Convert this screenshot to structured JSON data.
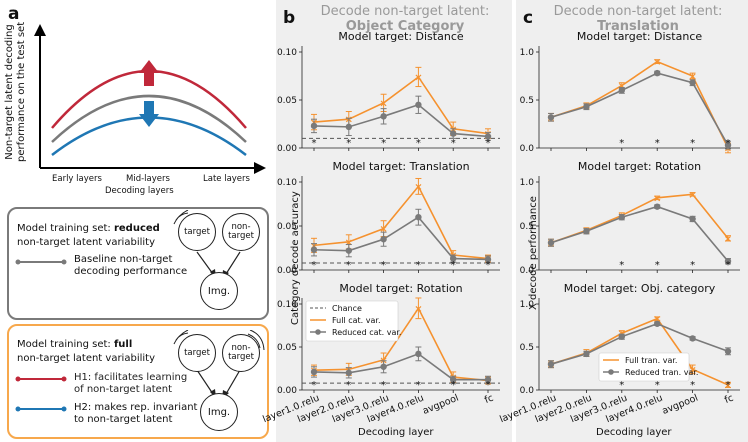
{
  "panel_a": {
    "label": "a",
    "ylabel_line1": "Non-target latent decoding",
    "ylabel_line2": "performance on the test set",
    "xticks": [
      "Early layers",
      "Mid-layers",
      "Late layers"
    ],
    "xlabel": "Decoding layers",
    "box1": {
      "line1_pre": "Model training set: ",
      "line1_bold": "reduced",
      "line2": "non-target latent variability",
      "legend_line1": "Baseline non-target",
      "legend_line2": "decoding performance",
      "node_target": "target",
      "node_nontarget_1": "non-",
      "node_nontarget_2": "target",
      "node_img": "Img."
    },
    "box2": {
      "line1_pre": "Model training set: ",
      "line1_bold": "full",
      "line2": "non-target latent variability",
      "h1_line1": "H1: facilitates learning",
      "h1_line2": "of non-target latent",
      "h2_line1": "H2: makes rep. invariant",
      "h2_line2": "to non-target latent",
      "node_target": "target",
      "node_nontarget_1": "non-",
      "node_nontarget_2": "target",
      "node_img": "Img."
    }
  },
  "panel_b": {
    "label": "b",
    "header_line1": "Decode non-target latent:",
    "header_line2": "Object Category",
    "ylabel": "Category decode accuracy",
    "xlabel": "Decoding layer",
    "legend": [
      "Chance",
      "Full cat. var.",
      "Reduced cat. var."
    ]
  },
  "panel_c": {
    "label": "c",
    "header_line1": "Decode non-target latent:",
    "header_line2": "Translation",
    "ylabel": "X decode performance",
    "xlabel": "Decoding layer",
    "legend": [
      "Full tran. var.",
      "Reduced tran. var."
    ]
  },
  "layers": [
    "layer1.0.relu",
    "layer2.0.relu",
    "layer3.0.relu",
    "layer4.0.relu",
    "avgpool",
    "fc"
  ],
  "colors": {
    "full": "#f5922f",
    "reduced": "#7a7a7a",
    "h1": "#c0283a",
    "h2": "#1f77b4",
    "panel_bg": "#efefef"
  },
  "chart_data": [
    {
      "type": "line",
      "title": "Model target: Distance",
      "column": "b",
      "ylim": [
        0,
        0.1
      ],
      "yticks": [
        "0.00",
        "0.05",
        "0.10"
      ],
      "yvals": [
        0,
        0.05,
        0.1
      ],
      "chance": 0.01,
      "series": [
        {
          "name": "Full cat. var.",
          "values": [
            0.027,
            0.03,
            0.047,
            0.074,
            0.02,
            0.015
          ],
          "err": [
            0.008,
            0.008,
            0.009,
            0.01,
            0.007,
            0.005
          ]
        },
        {
          "name": "Reduced cat. var.",
          "values": [
            0.023,
            0.022,
            0.033,
            0.045,
            0.015,
            0.012
          ],
          "err": [
            0.007,
            0.009,
            0.008,
            0.009,
            0.005,
            0.004
          ]
        }
      ],
      "stars": [
        "*",
        "*",
        "*",
        "*",
        "*",
        "*"
      ]
    },
    {
      "type": "line",
      "title": "Model target: Translation",
      "column": "b",
      "ylim": [
        0,
        0.1
      ],
      "yticks": [
        "0.00",
        "0.05",
        "0.10"
      ],
      "yvals": [
        0,
        0.05,
        0.1
      ],
      "chance": 0.008,
      "series": [
        {
          "name": "Full cat. var.",
          "values": [
            0.028,
            0.032,
            0.047,
            0.095,
            0.017,
            0.013
          ],
          "err": [
            0.008,
            0.008,
            0.009,
            0.009,
            0.005,
            0.004
          ]
        },
        {
          "name": "Reduced cat. var.",
          "values": [
            0.023,
            0.022,
            0.035,
            0.06,
            0.013,
            0.012
          ],
          "err": [
            0.007,
            0.007,
            0.008,
            0.009,
            0.004,
            0.004
          ]
        }
      ],
      "stars": [
        "*",
        "*",
        "*",
        "*",
        "*",
        "*"
      ]
    },
    {
      "type": "line",
      "title": "Model target: Rotation",
      "column": "b",
      "ylim": [
        0,
        0.1
      ],
      "yticks": [
        "0.00",
        "0.05",
        "0.10"
      ],
      "yvals": [
        0,
        0.05,
        0.1
      ],
      "chance": 0.008,
      "series": [
        {
          "name": "Full cat. var.",
          "values": [
            0.023,
            0.024,
            0.035,
            0.095,
            0.015,
            0.011
          ],
          "err": [
            0.006,
            0.007,
            0.008,
            0.012,
            0.006,
            0.004
          ]
        },
        {
          "name": "Reduced cat. var.",
          "values": [
            0.021,
            0.02,
            0.027,
            0.042,
            0.012,
            0.012
          ],
          "err": [
            0.006,
            0.006,
            0.007,
            0.008,
            0.004,
            0.004
          ]
        }
      ],
      "stars": [
        "*",
        "*",
        "*",
        "*",
        "*",
        "*"
      ],
      "legend": true
    },
    {
      "type": "line",
      "title": "Model target: Distance",
      "column": "c",
      "ylim": [
        0,
        1
      ],
      "yticks": [
        "0.0",
        "0.5",
        "1.0"
      ],
      "yvals": [
        0,
        0.5,
        1
      ],
      "series": [
        {
          "name": "Full tran. var.",
          "values": [
            0.32,
            0.44,
            0.65,
            0.9,
            0.75,
            0.0
          ],
          "err": [
            0.04,
            0.03,
            0.03,
            0.02,
            0.03,
            0.05
          ]
        },
        {
          "name": "Reduced tran. var.",
          "values": [
            0.32,
            0.43,
            0.6,
            0.78,
            0.68,
            0.03
          ],
          "err": [
            0.04,
            0.03,
            0.03,
            0.02,
            0.03,
            0.04
          ]
        }
      ],
      "stars": [
        "",
        "",
        "*",
        "*",
        "*",
        "*"
      ]
    },
    {
      "type": "line",
      "title": "Model target: Rotation",
      "column": "c",
      "ylim": [
        0,
        1
      ],
      "yticks": [
        "0.0",
        "0.5",
        "1.0"
      ],
      "yvals": [
        0,
        0.5,
        1
      ],
      "series": [
        {
          "name": "Full tran. var.",
          "values": [
            0.31,
            0.45,
            0.62,
            0.82,
            0.86,
            0.36
          ],
          "err": [
            0.04,
            0.03,
            0.03,
            0.02,
            0.02,
            0.03
          ]
        },
        {
          "name": "Reduced tran. var.",
          "values": [
            0.31,
            0.44,
            0.6,
            0.72,
            0.58,
            0.1
          ],
          "err": [
            0.04,
            0.03,
            0.03,
            0.02,
            0.03,
            0.03
          ]
        }
      ],
      "stars": [
        "",
        "",
        "*",
        "*",
        "*",
        "*"
      ]
    },
    {
      "type": "line",
      "title": "Model target: Obj. category",
      "column": "c",
      "ylim": [
        0,
        1
      ],
      "yticks": [
        "0.0",
        "0.5",
        "1.0"
      ],
      "yvals": [
        0,
        0.5,
        1
      ],
      "series": [
        {
          "name": "Full tran. var.",
          "values": [
            0.3,
            0.43,
            0.66,
            0.83,
            0.24,
            0.06
          ],
          "err": [
            0.04,
            0.04,
            0.03,
            0.02,
            0.05,
            0.03
          ]
        },
        {
          "name": "Reduced tran. var.",
          "values": [
            0.3,
            0.42,
            0.62,
            0.77,
            0.6,
            0.45
          ],
          "err": [
            0.04,
            0.03,
            0.03,
            0.02,
            0.02,
            0.04
          ]
        }
      ],
      "stars": [
        "",
        "",
        "*",
        "*",
        "*",
        "*"
      ],
      "legend": true
    }
  ]
}
